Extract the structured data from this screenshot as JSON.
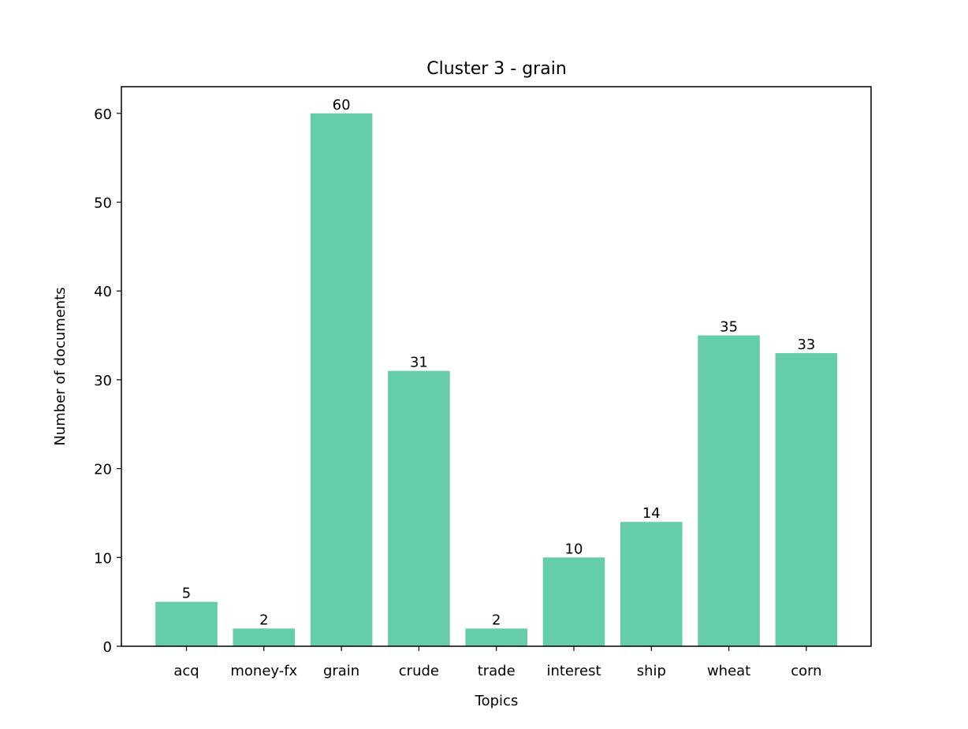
{
  "chart_data": {
    "type": "bar",
    "title": "Cluster 3 - grain",
    "xlabel": "Topics",
    "ylabel": "Number of documents",
    "categories": [
      "acq",
      "money-fx",
      "grain",
      "crude",
      "trade",
      "interest",
      "ship",
      "wheat",
      "corn"
    ],
    "values": [
      5,
      2,
      60,
      31,
      2,
      10,
      14,
      35,
      33
    ],
    "data_labels": [
      "5",
      "2",
      "60",
      "31",
      "2",
      "10",
      "14",
      "35",
      "33"
    ],
    "ylim": [
      0,
      63
    ],
    "yticks": [
      0,
      10,
      20,
      30,
      40,
      50,
      60
    ],
    "grid": false,
    "legend": "none",
    "bar_color": "#66cdaa"
  }
}
